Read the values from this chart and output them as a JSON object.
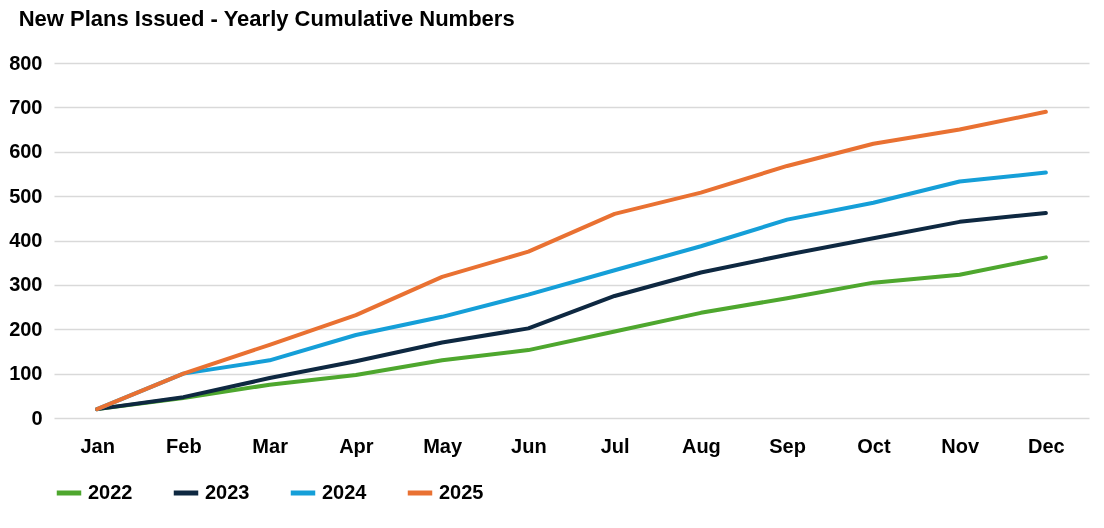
{
  "chart_data": {
    "type": "line",
    "title": "New Plans Issued - Yearly Cumulative Numbers",
    "categories": [
      "Jan",
      "Feb",
      "Mar",
      "Apr",
      "May",
      "Jun",
      "Jul",
      "Aug",
      "Sep",
      "Oct",
      "Nov",
      "Dec"
    ],
    "series": [
      {
        "name": "2022",
        "color": "#4ea72e",
        "values": [
          20,
          45,
          75,
          97,
          130,
          153,
          195,
          237,
          270,
          305,
          323,
          362
        ]
      },
      {
        "name": "2023",
        "color": "#0e2841",
        "values": [
          20,
          47,
          90,
          128,
          170,
          202,
          275,
          328,
          368,
          405,
          442,
          462
        ]
      },
      {
        "name": "2024",
        "color": "#159fd8",
        "values": [
          20,
          100,
          130,
          187,
          228,
          278,
          333,
          387,
          447,
          485,
          533,
          553
        ]
      },
      {
        "name": "2025",
        "color": "#e97132",
        "values": [
          20,
          100,
          165,
          232,
          318,
          375,
          460,
          508,
          568,
          618,
          650,
          690
        ]
      }
    ],
    "ylim": [
      0,
      800
    ],
    "yticks": [
      0,
      100,
      200,
      300,
      400,
      500,
      600,
      700,
      800
    ],
    "grid": "y",
    "legend": "bottom",
    "line_style": "solid",
    "marker": "none"
  }
}
